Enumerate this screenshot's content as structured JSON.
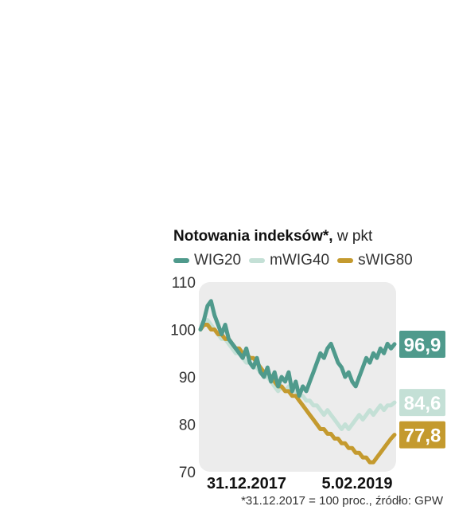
{
  "chart_data": {
    "type": "line",
    "title": "Notowania indeksów*,",
    "title_unit": "w pkt",
    "footnote": "*31.12.2017 = 100 proc., źródło: GPW",
    "ylim": [
      70,
      110
    ],
    "yticks": [
      "110",
      "100",
      "90",
      "80",
      "70"
    ],
    "x_labels": [
      "31.12.2017",
      "5.02.2019"
    ],
    "grid": false,
    "legend_placement": "top",
    "series": [
      {
        "name": "WIG20",
        "color": "#4f9a8c",
        "end_label": "96,9",
        "values": [
          100,
          102,
          105,
          106,
          103,
          101,
          99,
          101,
          98,
          97,
          96,
          95,
          94,
          96,
          93,
          92,
          94,
          91,
          90,
          92,
          89,
          91,
          88,
          90,
          89,
          91,
          87,
          89,
          86,
          88,
          87,
          89,
          91,
          93,
          95,
          94,
          96,
          97,
          95,
          93,
          92,
          90,
          91,
          89,
          88,
          90,
          92,
          94,
          93,
          95,
          94,
          96,
          95,
          97,
          96,
          96.9
        ]
      },
      {
        "name": "mWIG40",
        "color": "#c4e0d6",
        "end_label": "84,6",
        "values": [
          100,
          101,
          102,
          101,
          100,
          99,
          98,
          98,
          97,
          96,
          95,
          95,
          94,
          93,
          93,
          92,
          92,
          91,
          90,
          90,
          89,
          88,
          87,
          88,
          87,
          88,
          87,
          87,
          86,
          86,
          85,
          85,
          84,
          84,
          83,
          82,
          83,
          82,
          81,
          80,
          79,
          80,
          79,
          80,
          81,
          82,
          81,
          82,
          83,
          82,
          83,
          84,
          83,
          84,
          84,
          84.6
        ]
      },
      {
        "name": "sWIG80",
        "color": "#c49a2e",
        "end_label": "77,8",
        "values": [
          100,
          101,
          101,
          100,
          100,
          99,
          99,
          98,
          98,
          97,
          96,
          96,
          95,
          95,
          94,
          94,
          93,
          92,
          91,
          91,
          90,
          89,
          88,
          88,
          87,
          87,
          86,
          86,
          85,
          84,
          83,
          82,
          81,
          80,
          79,
          79,
          78,
          78,
          77,
          77,
          76,
          76,
          75,
          75,
          74,
          74,
          73,
          73,
          72,
          72,
          73,
          74,
          75,
          76,
          77,
          77.8
        ]
      }
    ]
  }
}
